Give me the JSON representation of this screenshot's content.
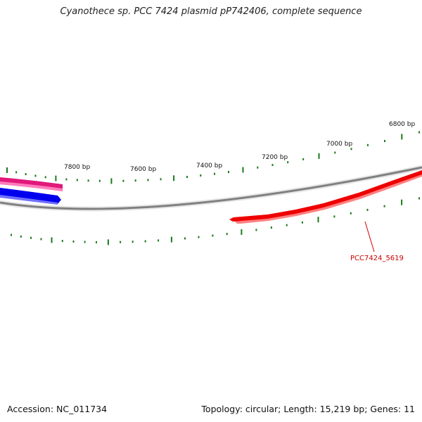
{
  "title": "Cyanothece sp. PCC 7424 plasmid pP742406, complete sequence",
  "footer": {
    "accession": "Accession: NC_011734",
    "summary": "Topology: circular; Length: 15,219 bp; Genes: 11"
  },
  "ruler": {
    "color": "#1a7a1a",
    "labels": [
      "7800 bp",
      "7600 bp",
      "7400 bp",
      "7200 bp",
      "7000 bp",
      "6800 bp"
    ]
  },
  "genes": [
    {
      "name": "PCC7424_5619",
      "color": "#ee0000",
      "shade": "#ff7a7a",
      "strand": "reverse",
      "label_visible": true
    },
    {
      "name": "",
      "color": "#e0197a",
      "shade": "#ff8fc4",
      "strand": "forward",
      "label_visible": false
    },
    {
      "name": "",
      "color": "#0000ee",
      "shade": "#7a7aff",
      "strand": "forward",
      "label_visible": false
    }
  ],
  "backbone": {
    "color": "#777777"
  }
}
